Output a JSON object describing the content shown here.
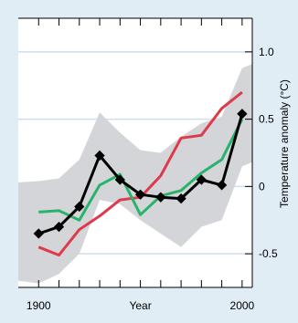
{
  "chart_data": {
    "type": "line",
    "title": "",
    "xlabel": "Year",
    "ylabel": "Temperature anomaly (°C)",
    "xlim": [
      1890,
      2005
    ],
    "ylim": [
      -0.75,
      1.25
    ],
    "x_ticks": [
      1900,
      1950,
      2000
    ],
    "x_tick_labels": [
      "1900",
      "Year",
      "2000"
    ],
    "x_minor_ticks": [
      1900,
      1910,
      1920,
      1930,
      1940,
      1950,
      1960,
      1970,
      1980,
      1990,
      2000
    ],
    "y_ticks": [
      -0.5,
      0,
      0.5,
      1.0
    ],
    "y_tick_labels": [
      "-0.5",
      "0",
      "0.5",
      "1.0"
    ],
    "grid": "horizontal",
    "legend": "none",
    "colors": {
      "background": "#e1edf5",
      "plot": "#ffffff",
      "band": "#d3d5d8",
      "grid": "#cdddf0",
      "axis": "#000000"
    },
    "band": {
      "x": [
        1890,
        1900,
        1910,
        1920,
        1930,
        1940,
        1950,
        1960,
        1970,
        1980,
        1990,
        2000,
        2005
      ],
      "upper": [
        0.03,
        0.04,
        0.06,
        0.2,
        0.55,
        0.4,
        0.27,
        0.25,
        0.37,
        0.47,
        0.52,
        0.88,
        0.91
      ],
      "lower": [
        -0.7,
        -0.72,
        -0.65,
        -0.5,
        -0.1,
        -0.13,
        -0.25,
        -0.35,
        -0.45,
        -0.3,
        -0.25,
        0.15,
        0.18
      ]
    },
    "series": [
      {
        "color": "#dd3b4a",
        "marker": "none",
        "x": [
          1900,
          1910,
          1920,
          1930,
          1940,
          1950,
          1960,
          1970,
          1980,
          1990,
          2000
        ],
        "y": [
          -0.45,
          -0.51,
          -0.32,
          -0.22,
          -0.1,
          -0.08,
          0.08,
          0.36,
          0.38,
          0.58,
          0.7
        ]
      },
      {
        "color": "#28b36a",
        "marker": "none",
        "x": [
          1900,
          1910,
          1920,
          1930,
          1940,
          1950,
          1960,
          1970,
          1980,
          1990,
          2000
        ],
        "y": [
          -0.19,
          -0.18,
          -0.25,
          0.01,
          0.09,
          -0.21,
          -0.07,
          -0.03,
          0.1,
          0.2,
          0.5
        ]
      },
      {
        "color": "#000000",
        "marker": "square",
        "x": [
          1900,
          1910,
          1920,
          1930,
          1940,
          1950,
          1960,
          1970,
          1980,
          1990,
          2000
        ],
        "y": [
          -0.35,
          -0.3,
          -0.15,
          0.23,
          0.05,
          -0.06,
          -0.08,
          -0.09,
          0.05,
          0.01,
          0.54
        ]
      }
    ]
  }
}
